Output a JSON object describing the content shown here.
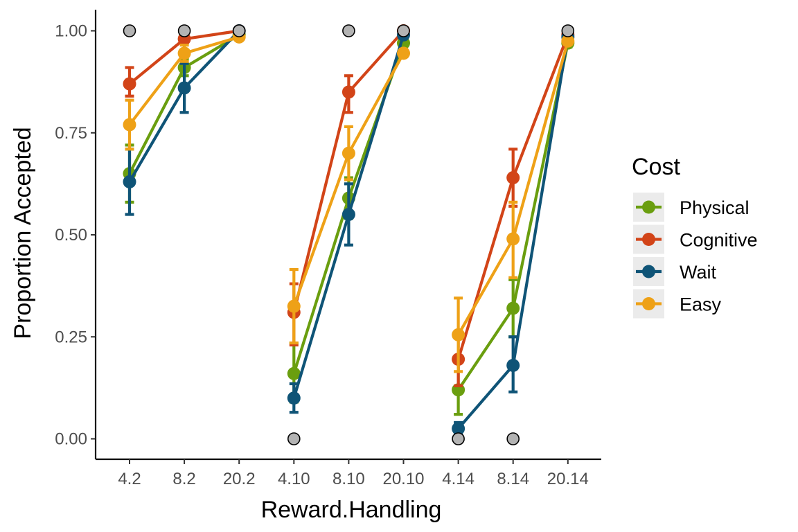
{
  "chart_data": {
    "type": "line",
    "xlabel": "Reward.Handling",
    "ylabel": "Proportion Accepted",
    "categories": [
      "4.2",
      "8.2",
      "20.2",
      "4.10",
      "8.10",
      "20.10",
      "4.14",
      "8.14",
      "20.14"
    ],
    "groups": [
      [
        0,
        1,
        2
      ],
      [
        3,
        4,
        5
      ],
      [
        6,
        7,
        8
      ]
    ],
    "ylim": [
      0,
      1
    ],
    "yticks": [
      0,
      0.25,
      0.5,
      0.75,
      1.0
    ],
    "ytick_labels": [
      "0.00",
      "0.25",
      "0.50",
      "0.75",
      "1.00"
    ],
    "grid": false,
    "legend": {
      "title": "Cost",
      "position": "right"
    },
    "series": [
      {
        "name": "Physical",
        "color": "#6a9e0f",
        "values": [
          0.65,
          0.91,
          0.99,
          0.16,
          0.59,
          0.97,
          0.12,
          0.32,
          0.97
        ],
        "lower": [
          0.58,
          0.89,
          0.985,
          0.09,
          0.54,
          0.96,
          0.06,
          0.25,
          0.96
        ],
        "upper": [
          0.72,
          0.93,
          0.995,
          0.235,
          0.64,
          0.985,
          0.19,
          0.39,
          0.98
        ]
      },
      {
        "name": "Cognitive",
        "color": "#d24418",
        "values": [
          0.87,
          0.98,
          1.0,
          0.31,
          0.85,
          1.0,
          0.195,
          0.64,
          0.99
        ],
        "lower": [
          0.84,
          0.97,
          0.995,
          0.23,
          0.8,
          0.995,
          0.13,
          0.57,
          0.985
        ],
        "upper": [
          0.91,
          0.99,
          1.0,
          0.38,
          0.89,
          1.0,
          0.255,
          0.71,
          1.0
        ]
      },
      {
        "name": "Wait",
        "color": "#0f5477",
        "values": [
          0.63,
          0.86,
          1.0,
          0.1,
          0.55,
          0.99,
          0.025,
          0.18,
          0.985
        ],
        "lower": [
          0.55,
          0.8,
          0.995,
          0.065,
          0.475,
          0.985,
          0.01,
          0.115,
          0.98
        ],
        "upper": [
          0.71,
          0.92,
          1.0,
          0.135,
          0.625,
          0.995,
          0.04,
          0.25,
          0.99
        ]
      },
      {
        "name": "Easy",
        "color": "#eea117",
        "values": [
          0.77,
          0.945,
          0.985,
          0.325,
          0.7,
          0.945,
          0.255,
          0.49,
          0.975
        ],
        "lower": [
          0.71,
          0.925,
          0.98,
          0.235,
          0.635,
          0.94,
          0.165,
          0.395,
          0.97
        ],
        "upper": [
          0.83,
          0.965,
          0.99,
          0.415,
          0.765,
          0.955,
          0.345,
          0.58,
          0.98
        ]
      }
    ],
    "reference_points": {
      "color": "#b3b3b3",
      "x": [
        "4.2",
        "8.2",
        "20.2",
        "4.10",
        "8.10",
        "20.10",
        "4.14",
        "8.14",
        "20.14"
      ],
      "y": [
        1.0,
        1.0,
        1.0,
        0.0,
        1.0,
        1.0,
        0.0,
        0.0,
        1.0
      ]
    }
  }
}
